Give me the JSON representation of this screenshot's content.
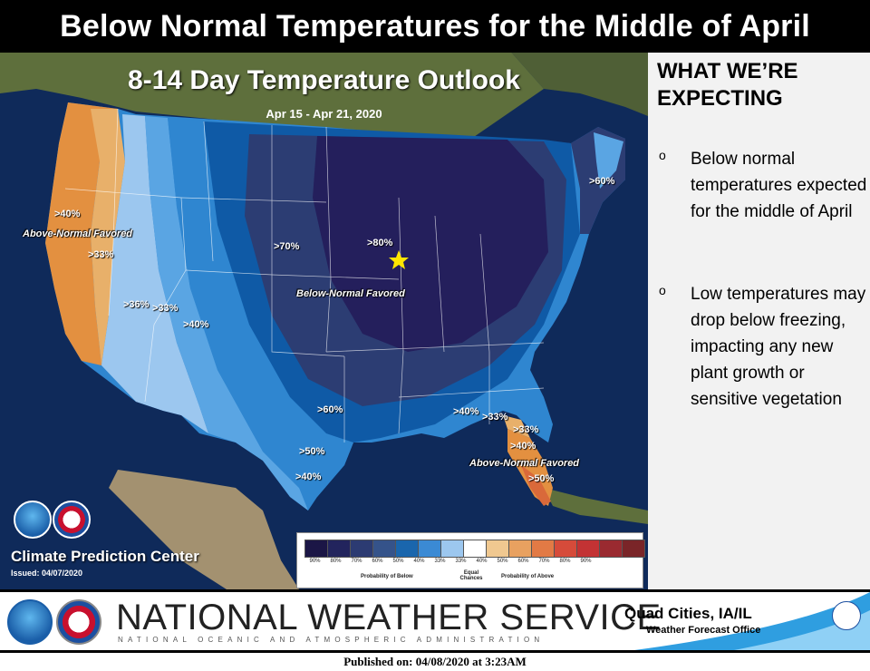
{
  "header": {
    "title": "Below Normal Temperatures for the Middle of April"
  },
  "map": {
    "title": "8-14 Day Temperature Outlook",
    "dates": "Apr 15 - Apr 21, 2020",
    "region_labels": {
      "above_west": "Above-Normal Favored",
      "below_central": "Below-Normal Favored",
      "above_southeast": "Above-Normal Favored"
    },
    "percent_labels": {
      "west_40": ">40%",
      "west_33": ">33%",
      "w_36": ">36%",
      "w_33": ">33%",
      "w_40": ">40%",
      "central_70": ">70%",
      "central_80": ">80%",
      "ne_60": ">60%",
      "south_60": ">60%",
      "south_50": ">50%",
      "south_40": ">40%",
      "se_40": ">40%",
      "se_33": ">33%",
      "fl_33": ">33%",
      "fl_40": ">40%",
      "fl_50": ">50%"
    },
    "credits": {
      "center": "Climate Prediction Center",
      "issued": "Issued: 04/07/2020"
    },
    "colors": {
      "ocean": "#0f2a5a",
      "land": "#5e6f3c",
      "desert": "#a39170",
      "below_90": "#1a1547",
      "below_80": "#241f5c",
      "below_70": "#2c3d73",
      "below_60": "#0f5aa6",
      "below_50": "#2f86d0",
      "below_40": "#5aa5e3",
      "below_33": "#9cc7ef",
      "above_33": "#e8b06a",
      "above_40": "#e39040",
      "above_50": "#d9693a",
      "above_60": "#c74a30",
      "star": "#ffe600"
    }
  },
  "legend": {
    "ticks": [
      "90%",
      "80%",
      "70%",
      "60%",
      "50%",
      "40%",
      "33%",
      "33%",
      "40%",
      "50%",
      "60%",
      "70%",
      "80%",
      "90%"
    ],
    "colors": [
      "#1b1646",
      "#22245d",
      "#2c3b72",
      "#35538a",
      "#1a66ad",
      "#3b8ad4",
      "#9cc7ef",
      "#ffffff",
      "#f0c890",
      "#e8a160",
      "#e27a45",
      "#d64b3a",
      "#c33334",
      "#9a2a30",
      "#7a2528"
    ],
    "below_caption": "Probability of Below",
    "equal_caption": "Equal Chances",
    "above_caption": "Probability of Above"
  },
  "sidebar": {
    "heading": "WHAT WE’RE EXPECTING",
    "bullet_mark": "o",
    "bullets": [
      "Below normal temperatures expected for the middle of April",
      "Low temperatures may drop below freezing, impacting any new plant growth or sensitive vegetation"
    ]
  },
  "banner": {
    "agency": "NATIONAL WEATHER SERVICE",
    "subtitle": "NATIONAL OCEANIC AND ATMOSPHERIC ADMINISTRATION",
    "office_city": "Quad Cities, IA/IL",
    "office_type": "Weather Forecast Office"
  },
  "footer": {
    "published": "Published on: 04/08/2020 at 3:23AM"
  }
}
